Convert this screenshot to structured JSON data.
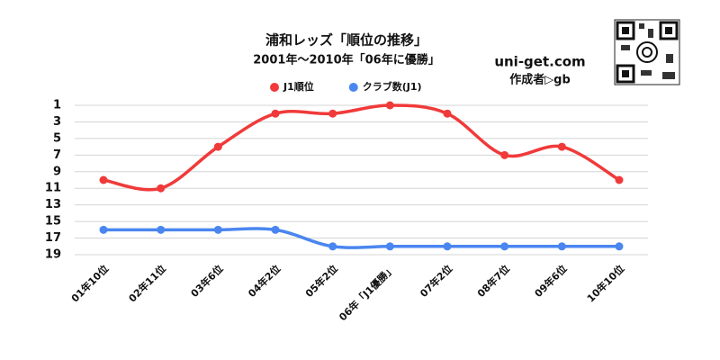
{
  "chart_data": {
    "type": "line",
    "title": "浦和レッズ「順位の推移」",
    "subtitle": "2001年～2010年「06年に優勝」",
    "site": "uni-get.com",
    "author": "作成者▷gb",
    "categories": [
      "01年10位",
      "02年11位",
      "03年6位",
      "04年2位",
      "05年2位",
      "06年「J1優勝」",
      "07年2位",
      "08年7位",
      "09年6位",
      "10年10位"
    ],
    "series": [
      {
        "name": "J1順位",
        "color": "#f03a3a",
        "values": [
          10,
          11,
          6,
          2,
          2,
          1,
          2,
          7,
          6,
          10
        ]
      },
      {
        "name": "クラブ数(J1)",
        "color": "#4a86f0",
        "values": [
          16,
          16,
          16,
          16,
          18,
          18,
          18,
          18,
          18,
          18
        ]
      }
    ],
    "ylim": [
      1,
      19
    ],
    "yticks": [
      1,
      3,
      5,
      7,
      9,
      11,
      13,
      15,
      17,
      19
    ],
    "y_inverted": true,
    "grid": true,
    "legend": "top"
  }
}
